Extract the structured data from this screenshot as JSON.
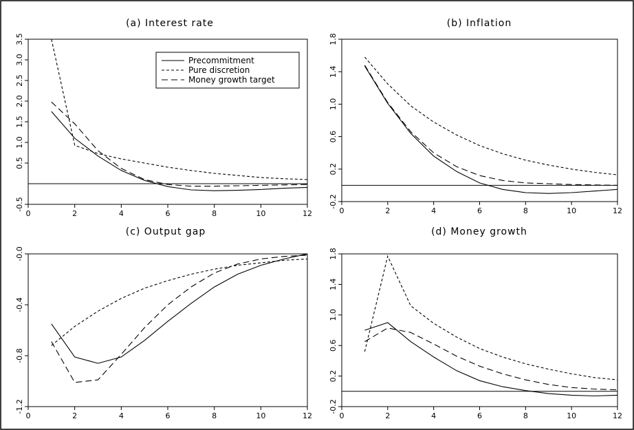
{
  "legend": [
    {
      "label": "Precommitment",
      "style": "solid"
    },
    {
      "label": "Pure discretion",
      "style": "short-dash"
    },
    {
      "label": "Money growth target",
      "style": "long-dash"
    }
  ],
  "chart_data": [
    {
      "type": "line",
      "title": "(a) Interest rate",
      "x_ticks": [
        0,
        2,
        4,
        6,
        8,
        10,
        12
      ],
      "y_ticks": [
        -0.5,
        0.5,
        1.0,
        1.5,
        2.0,
        2.5,
        3.0,
        3.5
      ],
      "y_tick_labels": [
        "-0.5",
        "0.5",
        "1.0",
        "1.5",
        "2.0",
        "2.5",
        "3.0",
        "3.5"
      ],
      "xlim": [
        0,
        12
      ],
      "ylim": [
        -0.5,
        3.5
      ],
      "zero_line": 0,
      "legend_position": "top-right",
      "series": [
        {
          "name": "Precommitment",
          "style": "solid",
          "x": [
            1,
            2,
            3,
            4,
            5,
            6,
            7,
            8,
            9,
            10,
            11,
            12
          ],
          "y": [
            1.75,
            1.1,
            0.67,
            0.32,
            0.08,
            -0.07,
            -0.15,
            -0.17,
            -0.16,
            -0.14,
            -0.11,
            -0.09
          ]
        },
        {
          "name": "Pure discretion",
          "style": "short-dash",
          "x": [
            1,
            2,
            3,
            4,
            5,
            6,
            7,
            8,
            9,
            10,
            11,
            12
          ],
          "y": [
            3.5,
            0.93,
            0.73,
            0.6,
            0.5,
            0.4,
            0.32,
            0.25,
            0.2,
            0.15,
            0.12,
            0.1
          ]
        },
        {
          "name": "Money growth target",
          "style": "long-dash",
          "x": [
            1,
            2,
            3,
            4,
            5,
            6,
            7,
            8,
            9,
            10,
            11,
            12
          ],
          "y": [
            1.98,
            1.45,
            0.8,
            0.37,
            0.1,
            -0.02,
            -0.06,
            -0.06,
            -0.05,
            -0.04,
            -0.03,
            -0.02
          ]
        }
      ]
    },
    {
      "type": "line",
      "title": "(b) Inflation",
      "x_ticks": [
        0,
        2,
        4,
        6,
        8,
        10,
        12
      ],
      "y_ticks": [
        -0.2,
        0.2,
        0.6,
        1.0,
        1.4,
        1.8
      ],
      "y_tick_labels": [
        "-0.2",
        "0.2",
        "0.6",
        "1.0",
        "1.4",
        "1.8"
      ],
      "xlim": [
        0,
        12
      ],
      "ylim": [
        -0.2,
        1.8
      ],
      "zero_line": 0,
      "series": [
        {
          "name": "Precommitment",
          "style": "solid",
          "x": [
            1,
            2,
            3,
            4,
            5,
            6,
            7,
            8,
            9,
            10,
            11,
            12
          ],
          "y": [
            1.47,
            1.01,
            0.64,
            0.36,
            0.17,
            0.03,
            -0.05,
            -0.09,
            -0.1,
            -0.09,
            -0.07,
            -0.05
          ]
        },
        {
          "name": "Pure discretion",
          "style": "short-dash",
          "x": [
            1,
            2,
            3,
            4,
            5,
            6,
            7,
            8,
            9,
            10,
            11,
            12
          ],
          "y": [
            1.58,
            1.25,
            0.98,
            0.78,
            0.62,
            0.49,
            0.39,
            0.31,
            0.25,
            0.2,
            0.16,
            0.13
          ]
        },
        {
          "name": "Money growth target",
          "style": "long-dash",
          "x": [
            1,
            2,
            3,
            4,
            5,
            6,
            7,
            8,
            9,
            10,
            11,
            12
          ],
          "y": [
            1.48,
            1.02,
            0.66,
            0.4,
            0.23,
            0.12,
            0.06,
            0.03,
            0.02,
            0.01,
            0.005,
            0.0
          ]
        }
      ]
    },
    {
      "type": "line",
      "title": "(c) Output gap",
      "x_ticks": [
        0,
        2,
        4,
        6,
        8,
        10,
        12
      ],
      "y_ticks": [
        -1.2,
        -0.8,
        -0.4,
        -0.0
      ],
      "y_tick_labels": [
        "-1.2",
        "-0.8",
        "-0.4",
        "-0.0"
      ],
      "xlim": [
        0,
        12
      ],
      "ylim": [
        -1.2,
        0.0
      ],
      "series": [
        {
          "name": "Precommitment",
          "style": "solid",
          "x": [
            1,
            2,
            3,
            4,
            5,
            6,
            7,
            8,
            9,
            10,
            11,
            12
          ],
          "y": [
            -0.55,
            -0.81,
            -0.86,
            -0.81,
            -0.68,
            -0.53,
            -0.39,
            -0.26,
            -0.16,
            -0.09,
            -0.04,
            0.0
          ]
        },
        {
          "name": "Pure discretion",
          "style": "short-dash",
          "x": [
            1,
            2,
            3,
            4,
            5,
            6,
            7,
            8,
            9,
            10,
            11,
            12
          ],
          "y": [
            -0.72,
            -0.57,
            -0.45,
            -0.35,
            -0.27,
            -0.21,
            -0.16,
            -0.12,
            -0.09,
            -0.07,
            -0.05,
            -0.04
          ]
        },
        {
          "name": "Money growth target",
          "style": "long-dash",
          "x": [
            1,
            2,
            3,
            4,
            5,
            6,
            7,
            8,
            9,
            10,
            11,
            12
          ],
          "y": [
            -0.69,
            -1.01,
            -0.99,
            -0.79,
            -0.58,
            -0.4,
            -0.26,
            -0.15,
            -0.08,
            -0.04,
            -0.02,
            -0.01
          ]
        }
      ]
    },
    {
      "type": "line",
      "title": "(d) Money growth",
      "x_ticks": [
        0,
        2,
        4,
        6,
        8,
        10,
        12
      ],
      "y_ticks": [
        -0.2,
        0.2,
        0.6,
        1.0,
        1.4,
        1.8
      ],
      "y_tick_labels": [
        "-0.2",
        "0.2",
        "0.6",
        "1.0",
        "1.4",
        "1.8"
      ],
      "xlim": [
        0,
        12
      ],
      "ylim": [
        -0.2,
        1.8
      ],
      "zero_line": 0,
      "series": [
        {
          "name": "Precommitment",
          "style": "solid",
          "x": [
            1,
            2,
            3,
            4,
            5,
            6,
            7,
            8,
            9,
            10,
            11,
            12
          ],
          "y": [
            0.8,
            0.9,
            0.65,
            0.45,
            0.27,
            0.14,
            0.06,
            0.01,
            -0.03,
            -0.05,
            -0.06,
            -0.05
          ]
        },
        {
          "name": "Pure discretion",
          "style": "short-dash",
          "x": [
            1,
            2,
            3,
            4,
            5,
            6,
            7,
            8,
            9,
            10,
            11,
            12
          ],
          "y": [
            0.52,
            1.77,
            1.12,
            0.89,
            0.71,
            0.56,
            0.45,
            0.36,
            0.29,
            0.23,
            0.18,
            0.15
          ]
        },
        {
          "name": "Money growth target",
          "style": "long-dash",
          "x": [
            1,
            2,
            3,
            4,
            5,
            6,
            7,
            8,
            9,
            10,
            11,
            12
          ],
          "y": [
            0.65,
            0.83,
            0.77,
            0.62,
            0.46,
            0.33,
            0.23,
            0.15,
            0.09,
            0.05,
            0.03,
            0.02
          ]
        }
      ]
    }
  ]
}
